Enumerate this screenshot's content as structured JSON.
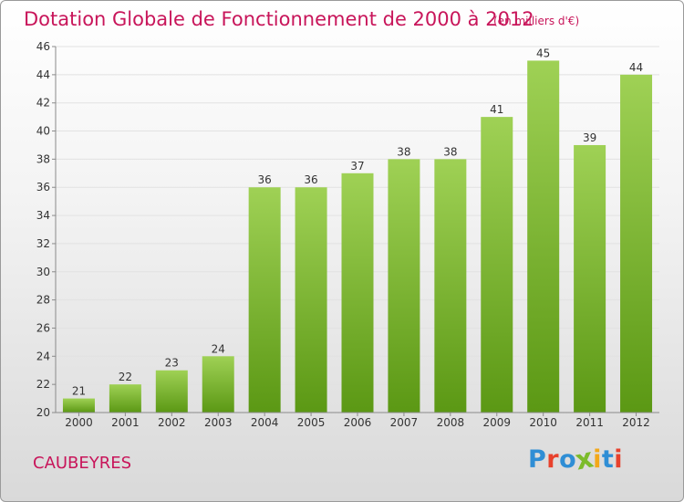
{
  "header": {
    "title": "Dotation Globale de Fonctionnement de 2000 à 2012",
    "subtitle": "(en milliers d'€)"
  },
  "footer": {
    "commune": "CAUBEYRES",
    "logo_text": "Proxiti"
  },
  "colors": {
    "title": "#c8155a",
    "bar_top": "#9fd155",
    "bar_bottom": "#5b9814",
    "grid": "#e2e2e2",
    "axis": "#8a8a8a",
    "logo": [
      "#2f8ed5",
      "#e8412c",
      "#2f8ed5",
      "#7cbb2b",
      "#f2a81a",
      "#2f8ed5",
      "#e8412c"
    ]
  },
  "chart_data": {
    "type": "bar",
    "title": "Dotation Globale de Fonctionnement de 2000 à 2012",
    "subtitle": "(en milliers d'€)",
    "categories": [
      "2000",
      "2001",
      "2002",
      "2003",
      "2004",
      "2005",
      "2006",
      "2007",
      "2008",
      "2009",
      "2010",
      "2011",
      "2012"
    ],
    "values": [
      21,
      22,
      23,
      24,
      36,
      36,
      37,
      38,
      38,
      41,
      45,
      39,
      44
    ],
    "data_labels": [
      "21",
      "22",
      "23",
      "24",
      "36",
      "36",
      "37",
      "38",
      "38",
      "41",
      "45",
      "39",
      "44"
    ],
    "ylim": [
      20,
      46
    ],
    "yticks": [
      20,
      22,
      24,
      26,
      28,
      30,
      32,
      34,
      36,
      38,
      40,
      42,
      44,
      46
    ],
    "ytick_labels": [
      "20",
      "22",
      "24",
      "26",
      "28",
      "30",
      "32",
      "34",
      "36",
      "38",
      "40",
      "42",
      "44",
      "46"
    ],
    "xlabel": "",
    "ylabel": "",
    "grid": true,
    "legend": "none"
  }
}
